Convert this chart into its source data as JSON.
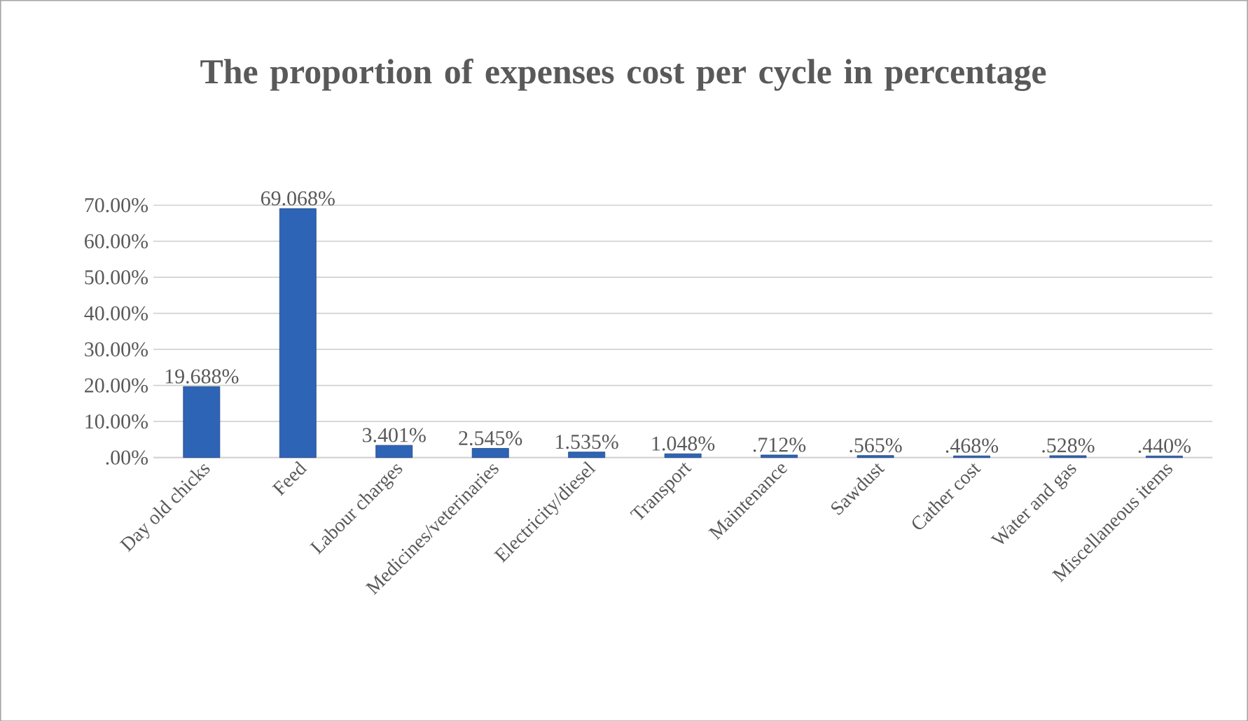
{
  "chart_data": {
    "type": "bar",
    "title": "The proportion of expenses cost per cycle in percentage",
    "categories": [
      "Day old chicks",
      "Feed",
      "Labour charges",
      "Medicines/veterinaries",
      "Electricity/diesel",
      "Transport",
      "Maintenance",
      "Sawdust",
      "Cather cost",
      "Water and gas",
      "Miscellaneous items"
    ],
    "values": [
      19.688,
      69.068,
      3.401,
      2.545,
      1.535,
      1.048,
      0.712,
      0.565,
      0.468,
      0.528,
      0.44
    ],
    "value_labels": [
      "19.688%",
      "69.068%",
      "3.401%",
      "2.545%",
      "1.535%",
      "1.048%",
      ".712%",
      ".565%",
      ".468%",
      ".528%",
      ".440%"
    ],
    "color": "#2e64b5",
    "ylim": [
      0,
      70
    ],
    "yticks": [
      {
        "value": 0,
        "label": ".00%"
      },
      {
        "value": 10,
        "label": "10.00%"
      },
      {
        "value": 20,
        "label": "20.00%"
      },
      {
        "value": 30,
        "label": "30.00%"
      },
      {
        "value": 40,
        "label": "40.00%"
      },
      {
        "value": 50,
        "label": "50.00%"
      },
      {
        "value": 60,
        "label": "60.00%"
      },
      {
        "value": 70,
        "label": "70.00%"
      }
    ],
    "grid": "y"
  }
}
